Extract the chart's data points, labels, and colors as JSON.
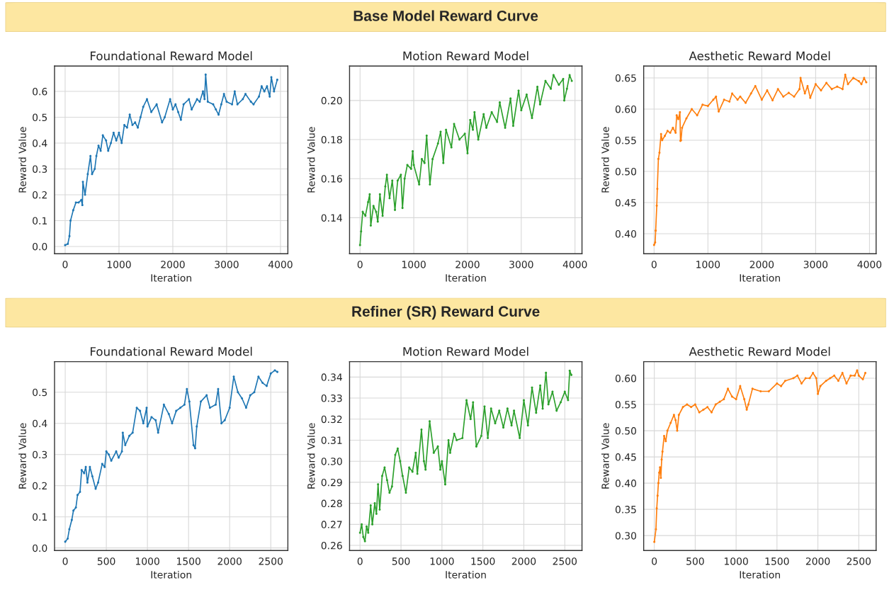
{
  "chart_data": [
    {
      "type": "other",
      "title": "Base Model Reward Curve"
    },
    {
      "type": "line",
      "title": "Foundational Reward Model",
      "xlabel": "Iteration",
      "ylabel": "Reward Value",
      "grid": true,
      "marker": "circle",
      "line_style": "solid",
      "xlim": [
        -197,
        4137
      ],
      "ylim": [
        -0.028,
        0.698
      ],
      "xticks": [
        0,
        1000,
        2000,
        3000,
        4000
      ],
      "yticks": [
        {
          "value": 0,
          "label": "0.0"
        },
        0.1,
        0.2,
        0.3,
        0.4,
        0.5,
        0.6
      ],
      "series": [
        {
          "color": "#1f77b4",
          "x": [
            0,
            50,
            80,
            100,
            150,
            200,
            250,
            300,
            320,
            330,
            370,
            420,
            470,
            500,
            550,
            580,
            620,
            660,
            700,
            760,
            800,
            850,
            900,
            950,
            1000,
            1050,
            1100,
            1150,
            1200,
            1250,
            1300,
            1350,
            1400,
            1450,
            1520,
            1600,
            1700,
            1800,
            1850,
            1950,
            2000,
            2050,
            2100,
            2150,
            2200,
            2300,
            2350,
            2450,
            2500,
            2560,
            2590,
            2610,
            2650,
            2750,
            2800,
            2850,
            2900,
            2950,
            3000,
            3100,
            3150,
            3200,
            3300,
            3350,
            3450,
            3500,
            3600,
            3650,
            3700,
            3750,
            3800,
            3830,
            3880,
            3940
          ],
          "values": [
            0.005,
            0.01,
            0.04,
            0.1,
            0.14,
            0.17,
            0.17,
            0.18,
            0.16,
            0.25,
            0.2,
            0.28,
            0.35,
            0.28,
            0.3,
            0.35,
            0.39,
            0.37,
            0.43,
            0.41,
            0.37,
            0.4,
            0.44,
            0.41,
            0.44,
            0.4,
            0.47,
            0.46,
            0.51,
            0.47,
            0.48,
            0.46,
            0.5,
            0.54,
            0.57,
            0.52,
            0.55,
            0.48,
            0.5,
            0.57,
            0.53,
            0.55,
            0.52,
            0.49,
            0.55,
            0.57,
            0.53,
            0.57,
            0.56,
            0.6,
            0.57,
            0.665,
            0.56,
            0.55,
            0.53,
            0.51,
            0.55,
            0.59,
            0.56,
            0.55,
            0.6,
            0.55,
            0.57,
            0.59,
            0.56,
            0.55,
            0.58,
            0.62,
            0.6,
            0.62,
            0.58,
            0.655,
            0.6,
            0.645
          ]
        }
      ]
    },
    {
      "type": "line",
      "title": "Motion Reward Model",
      "xlabel": "Iteration",
      "ylabel": "Reward Value",
      "grid": true,
      "marker": "circle",
      "line_style": "solid",
      "xlim": [
        -195,
        4130
      ],
      "ylim": [
        0.1216,
        0.2176
      ],
      "xticks": [
        0,
        1000,
        2000,
        3000,
        4000
      ],
      "yticks": [
        0.14,
        0.16,
        0.18,
        {
          "value": 0.2,
          "label": "0.20"
        }
      ],
      "series": [
        {
          "color": "#2ca02c",
          "x": [
            0,
            20,
            50,
            100,
            150,
            180,
            200,
            250,
            300,
            330,
            370,
            420,
            470,
            500,
            550,
            600,
            650,
            700,
            760,
            790,
            830,
            880,
            950,
            980,
            1000,
            1100,
            1150,
            1200,
            1240,
            1300,
            1350,
            1450,
            1500,
            1550,
            1600,
            1700,
            1750,
            1850,
            1950,
            2000,
            2050,
            2100,
            2130,
            2200,
            2300,
            2350,
            2450,
            2550,
            2600,
            2700,
            2800,
            2850,
            2950,
            3000,
            3100,
            3200,
            3300,
            3350,
            3450,
            3550,
            3600,
            3700,
            3780,
            3800,
            3850,
            3900,
            3940
          ],
          "values": [
            0.126,
            0.133,
            0.143,
            0.141,
            0.148,
            0.152,
            0.136,
            0.146,
            0.143,
            0.138,
            0.152,
            0.141,
            0.156,
            0.162,
            0.15,
            0.159,
            0.144,
            0.159,
            0.162,
            0.145,
            0.16,
            0.167,
            0.165,
            0.174,
            0.167,
            0.157,
            0.17,
            0.168,
            0.182,
            0.157,
            0.17,
            0.178,
            0.184,
            0.168,
            0.185,
            0.176,
            0.188,
            0.18,
            0.183,
            0.173,
            0.19,
            0.185,
            0.194,
            0.18,
            0.193,
            0.186,
            0.194,
            0.189,
            0.199,
            0.186,
            0.201,
            0.187,
            0.205,
            0.195,
            0.203,
            0.191,
            0.207,
            0.198,
            0.21,
            0.206,
            0.213,
            0.208,
            0.211,
            0.2,
            0.206,
            0.213,
            0.21
          ]
        }
      ]
    },
    {
      "type": "line",
      "title": "Aesthetic Reward Model",
      "xlabel": "Iteration",
      "ylabel": "Reward Value",
      "grid": true,
      "marker": "circle",
      "line_style": "solid",
      "xlim": [
        -193,
        4123
      ],
      "ylim": [
        0.368,
        0.669
      ],
      "xticks": [
        0,
        1000,
        2000,
        3000,
        4000
      ],
      "yticks": [
        {
          "value": 0.4,
          "label": "0.40"
        },
        0.45,
        {
          "value": 0.5,
          "label": "0.50"
        },
        0.55,
        {
          "value": 0.6,
          "label": "0.60"
        },
        0.65
      ],
      "series": [
        {
          "color": "#ff7f0e",
          "x": [
            0,
            20,
            30,
            50,
            60,
            80,
            100,
            130,
            150,
            200,
            250,
            300,
            350,
            400,
            420,
            450,
            480,
            490,
            500,
            520,
            600,
            700,
            800,
            900,
            1000,
            1100,
            1150,
            1200,
            1300,
            1400,
            1450,
            1550,
            1600,
            1700,
            1800,
            1880,
            2000,
            2100,
            2200,
            2300,
            2400,
            2500,
            2600,
            2700,
            2720,
            2800,
            2850,
            2900,
            3000,
            3100,
            3200,
            3300,
            3400,
            3500,
            3550,
            3600,
            3700,
            3800,
            3850,
            3900,
            3940
          ],
          "values": [
            0.382,
            0.386,
            0.405,
            0.445,
            0.472,
            0.52,
            0.53,
            0.56,
            0.55,
            0.557,
            0.565,
            0.562,
            0.57,
            0.562,
            0.59,
            0.584,
            0.595,
            0.549,
            0.55,
            0.57,
            0.585,
            0.6,
            0.59,
            0.607,
            0.605,
            0.615,
            0.62,
            0.596,
            0.615,
            0.612,
            0.625,
            0.615,
            0.62,
            0.61,
            0.625,
            0.637,
            0.615,
            0.63,
            0.614,
            0.632,
            0.62,
            0.626,
            0.62,
            0.632,
            0.65,
            0.625,
            0.637,
            0.618,
            0.64,
            0.63,
            0.642,
            0.632,
            0.636,
            0.632,
            0.655,
            0.64,
            0.65,
            0.645,
            0.64,
            0.65,
            0.643
          ]
        }
      ]
    },
    {
      "type": "other",
      "title": "Refiner (SR) Reward Curve"
    },
    {
      "type": "line",
      "title": "Foundational Reward Model",
      "xlabel": "Iteration",
      "ylabel": "Reward Value",
      "grid": true,
      "marker": "circle",
      "line_style": "solid",
      "xlim": [
        -130,
        2708
      ],
      "ylim": [
        -0.008,
        0.598
      ],
      "xticks": [
        0,
        500,
        1000,
        1500,
        2000,
        2500
      ],
      "yticks": [
        {
          "value": 0,
          "label": "0.0"
        },
        0.1,
        0.2,
        0.3,
        0.4,
        0.5
      ],
      "series": [
        {
          "color": "#1f77b4",
          "x": [
            0,
            30,
            50,
            80,
            100,
            130,
            150,
            180,
            200,
            230,
            250,
            270,
            300,
            330,
            370,
            400,
            450,
            480,
            500,
            530,
            560,
            620,
            650,
            690,
            700,
            730,
            780,
            820,
            870,
            910,
            950,
            990,
            1000,
            1050,
            1100,
            1130,
            1200,
            1260,
            1300,
            1350,
            1400,
            1450,
            1480,
            1510,
            1560,
            1580,
            1600,
            1650,
            1720,
            1760,
            1830,
            1860,
            1900,
            1940,
            2000,
            2050,
            2100,
            2150,
            2200,
            2250,
            2300,
            2350,
            2400,
            2450,
            2500,
            2550,
            2580
          ],
          "values": [
            0.02,
            0.03,
            0.06,
            0.09,
            0.12,
            0.13,
            0.17,
            0.18,
            0.25,
            0.24,
            0.26,
            0.21,
            0.26,
            0.23,
            0.19,
            0.21,
            0.27,
            0.26,
            0.31,
            0.3,
            0.28,
            0.31,
            0.29,
            0.31,
            0.37,
            0.33,
            0.36,
            0.37,
            0.45,
            0.44,
            0.4,
            0.45,
            0.39,
            0.42,
            0.41,
            0.37,
            0.46,
            0.43,
            0.4,
            0.44,
            0.45,
            0.46,
            0.51,
            0.47,
            0.33,
            0.32,
            0.39,
            0.47,
            0.49,
            0.45,
            0.46,
            0.51,
            0.4,
            0.41,
            0.45,
            0.55,
            0.5,
            0.48,
            0.45,
            0.49,
            0.5,
            0.55,
            0.53,
            0.52,
            0.56,
            0.57,
            0.565
          ]
        }
      ]
    },
    {
      "type": "line",
      "title": "Motion Reward Model",
      "xlabel": "Iteration",
      "ylabel": "Reward Value",
      "grid": true,
      "marker": "circle",
      "line_style": "solid",
      "xlim": [
        -128,
        2710
      ],
      "ylim": [
        0.2576,
        0.3473
      ],
      "xticks": [
        0,
        500,
        1000,
        1500,
        2000,
        2500
      ],
      "yticks": [
        0.26,
        0.27,
        0.28,
        0.29,
        {
          "value": 0.3,
          "label": "0.30"
        },
        0.31,
        0.32,
        0.33,
        0.34
      ],
      "series": [
        {
          "color": "#2ca02c",
          "x": [
            0,
            20,
            40,
            60,
            80,
            100,
            130,
            150,
            180,
            200,
            220,
            240,
            270,
            300,
            330,
            360,
            390,
            430,
            460,
            490,
            520,
            560,
            600,
            640,
            680,
            700,
            750,
            780,
            800,
            850,
            900,
            950,
            980,
            1000,
            1040,
            1080,
            1100,
            1150,
            1180,
            1250,
            1300,
            1350,
            1380,
            1420,
            1480,
            1520,
            1560,
            1600,
            1650,
            1700,
            1750,
            1800,
            1850,
            1880,
            1950,
            2000,
            2050,
            2100,
            2150,
            2200,
            2230,
            2270,
            2300,
            2350,
            2400,
            2450,
            2500,
            2540,
            2560,
            2580
          ],
          "values": [
            0.266,
            0.27,
            0.264,
            0.262,
            0.269,
            0.266,
            0.279,
            0.27,
            0.28,
            0.275,
            0.289,
            0.277,
            0.293,
            0.297,
            0.291,
            0.285,
            0.288,
            0.303,
            0.306,
            0.3,
            0.293,
            0.285,
            0.297,
            0.295,
            0.304,
            0.294,
            0.315,
            0.3,
            0.296,
            0.319,
            0.304,
            0.307,
            0.296,
            0.3,
            0.289,
            0.31,
            0.304,
            0.313,
            0.31,
            0.311,
            0.329,
            0.32,
            0.328,
            0.307,
            0.312,
            0.326,
            0.311,
            0.325,
            0.318,
            0.324,
            0.316,
            0.325,
            0.317,
            0.324,
            0.311,
            0.329,
            0.317,
            0.335,
            0.323,
            0.336,
            0.325,
            0.342,
            0.327,
            0.333,
            0.324,
            0.328,
            0.333,
            0.329,
            0.343,
            0.341
          ]
        }
      ]
    },
    {
      "type": "line",
      "title": "Aesthetic Reward Model",
      "xlabel": "Iteration",
      "ylabel": "Reward Value",
      "grid": true,
      "marker": "circle",
      "line_style": "solid",
      "xlim": [
        -130,
        2712
      ],
      "ylim": [
        0.2716,
        0.6316
      ],
      "xticks": [
        0,
        500,
        1000,
        1500,
        2000,
        2500
      ],
      "yticks": [
        {
          "value": 0.3,
          "label": "0.30"
        },
        0.35,
        {
          "value": 0.4,
          "label": "0.40"
        },
        0.45,
        {
          "value": 0.5,
          "label": "0.50"
        },
        0.55,
        {
          "value": 0.6,
          "label": "0.60"
        }
      ],
      "series": [
        {
          "color": "#ff7f0e",
          "x": [
            0,
            20,
            30,
            40,
            50,
            60,
            70,
            80,
            90,
            100,
            120,
            140,
            160,
            200,
            240,
            260,
            280,
            300,
            350,
            400,
            450,
            500,
            550,
            600,
            650,
            700,
            750,
            800,
            850,
            900,
            950,
            1000,
            1050,
            1100,
            1130,
            1150,
            1200,
            1300,
            1400,
            1500,
            1550,
            1600,
            1700,
            1750,
            1800,
            1850,
            1900,
            1940,
            1980,
            2000,
            2030,
            2100,
            2150,
            2200,
            2250,
            2300,
            2350,
            2400,
            2450,
            2480,
            2500,
            2550,
            2580
          ],
          "values": [
            0.288,
            0.312,
            0.352,
            0.376,
            0.4,
            0.42,
            0.43,
            0.41,
            0.445,
            0.46,
            0.49,
            0.48,
            0.5,
            0.515,
            0.53,
            0.52,
            0.5,
            0.53,
            0.545,
            0.55,
            0.545,
            0.55,
            0.535,
            0.54,
            0.545,
            0.535,
            0.55,
            0.555,
            0.56,
            0.58,
            0.565,
            0.56,
            0.585,
            0.56,
            0.54,
            0.55,
            0.58,
            0.575,
            0.575,
            0.59,
            0.585,
            0.595,
            0.6,
            0.605,
            0.59,
            0.6,
            0.6,
            0.61,
            0.6,
            0.57,
            0.585,
            0.595,
            0.6,
            0.605,
            0.595,
            0.61,
            0.59,
            0.605,
            0.605,
            0.615,
            0.605,
            0.598,
            0.61
          ]
        }
      ]
    }
  ]
}
